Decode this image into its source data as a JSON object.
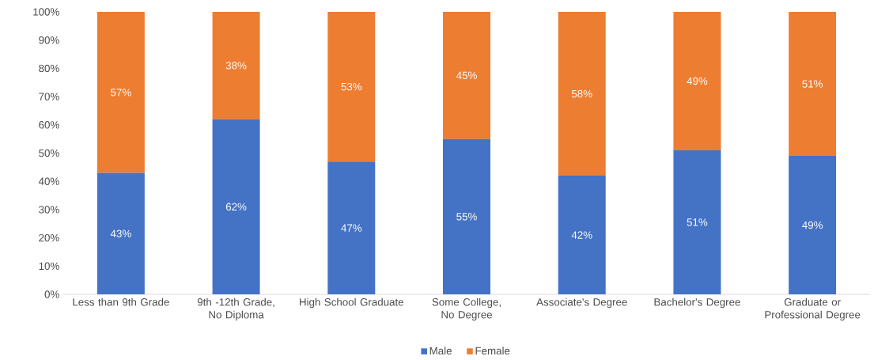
{
  "chart_data": {
    "type": "bar",
    "stacked": true,
    "categories": [
      "Less than 9th Grade",
      "9th -12th Grade, No Diploma",
      "High School Graduate",
      "Some College, No Degree",
      "Associate's Degree",
      "Bachelor's Degree",
      "Graduate or Professional Degree"
    ],
    "series": [
      {
        "name": "Male",
        "color": "#4472c4",
        "values": [
          43,
          62,
          47,
          55,
          42,
          51,
          49
        ],
        "value_labels": [
          "43%",
          "62%",
          "47%",
          "55%",
          "42%",
          "51%",
          "49%"
        ]
      },
      {
        "name": "Female",
        "color": "#ed7d31",
        "values": [
          57,
          38,
          53,
          45,
          58,
          49,
          51
        ],
        "value_labels": [
          "57%",
          "38%",
          "53%",
          "45%",
          "58%",
          "49%",
          "51%"
        ]
      }
    ],
    "ylim": [
      0,
      100
    ],
    "yticks": [
      {
        "value": 0,
        "label": "0%"
      },
      {
        "value": 10,
        "label": "10%"
      },
      {
        "value": 20,
        "label": "20%"
      },
      {
        "value": 30,
        "label": "30%"
      },
      {
        "value": 40,
        "label": "40%"
      },
      {
        "value": 50,
        "label": "50%"
      },
      {
        "value": 60,
        "label": "60%"
      },
      {
        "value": 70,
        "label": "70%"
      },
      {
        "value": 80,
        "label": "80%"
      },
      {
        "value": 90,
        "label": "90%"
      },
      {
        "value": 100,
        "label": "100%"
      }
    ],
    "legend": "bottom"
  }
}
